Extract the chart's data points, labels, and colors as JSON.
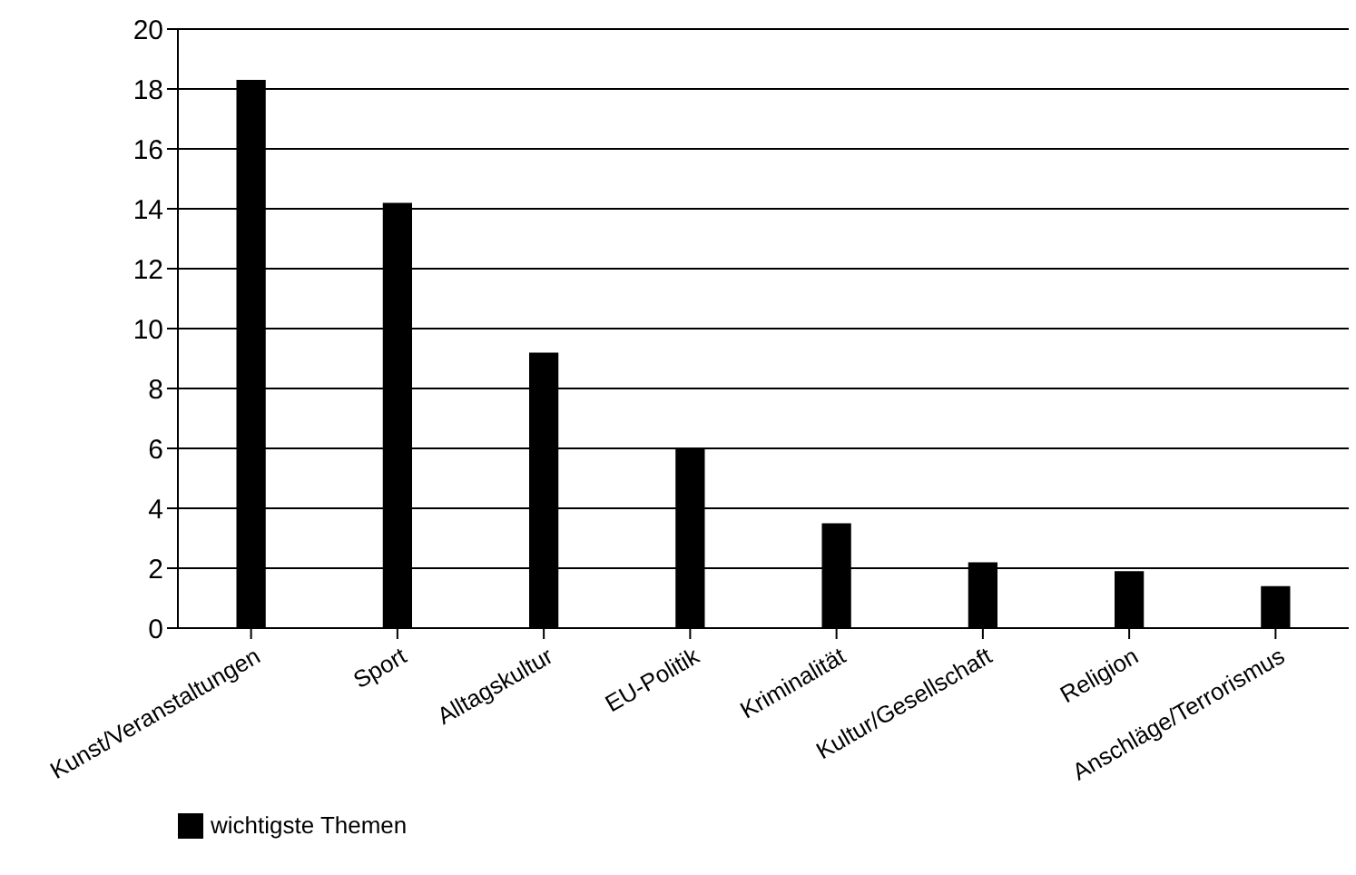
{
  "chart_data": {
    "type": "bar",
    "categories": [
      "Kunst/Veranstaltungen",
      "Sport",
      "Alltagskultur",
      "EU-Politik",
      "Kriminalität",
      "Kultur/Gesellschaft",
      "Religion",
      "Anschläge/Terrorismus"
    ],
    "series": [
      {
        "name": "wichtigste Themen",
        "color": "#000000",
        "values": [
          18.3,
          14.2,
          9.2,
          6.0,
          3.5,
          2.2,
          1.9,
          1.4
        ]
      }
    ],
    "ylim": [
      0,
      20
    ],
    "yticks": [
      0,
      2,
      4,
      6,
      8,
      10,
      12,
      14,
      16,
      18,
      20
    ],
    "grid": "y",
    "legend": "bottom left"
  }
}
